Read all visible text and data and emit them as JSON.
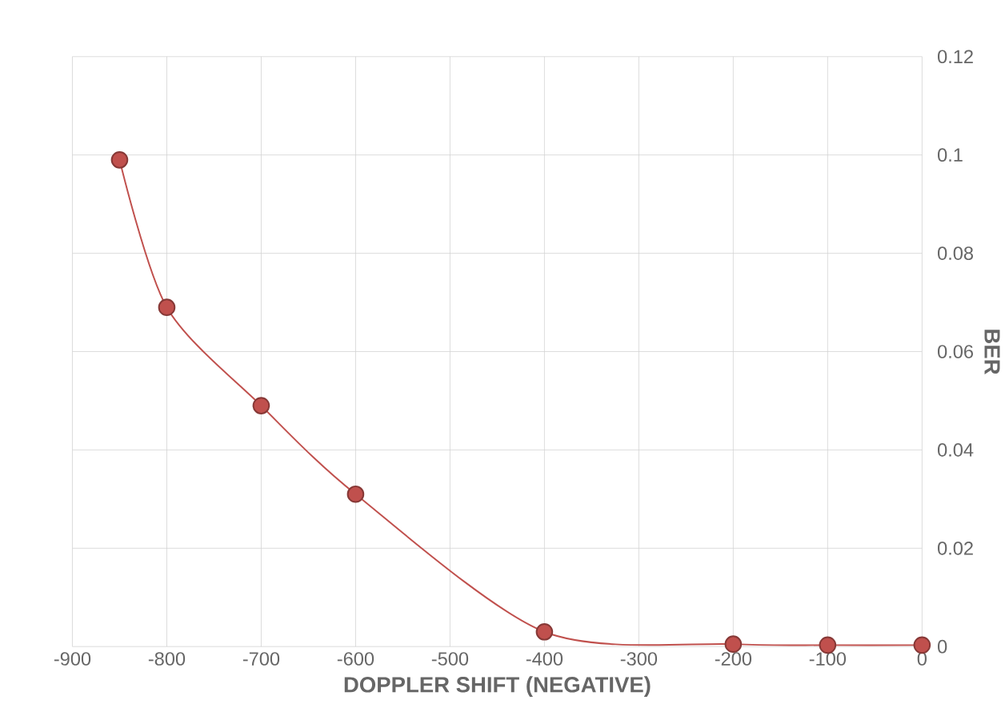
{
  "chart_data": {
    "type": "line",
    "xlabel": "DOPPLER SHIFT (NEGATIVE)",
    "ylabel": "BER",
    "x": [
      -850,
      -800,
      -700,
      -600,
      -400,
      -200,
      -100,
      0
    ],
    "series": [
      {
        "color": "#c0504d",
        "values": [
          0.099,
          0.069,
          0.049,
          0.031,
          0.003,
          0.0005,
          0.0003,
          0.0003
        ]
      }
    ],
    "xlim": [
      -900,
      0
    ],
    "xticks": [
      -900,
      -800,
      -700,
      -600,
      -500,
      -400,
      -300,
      -200,
      -100,
      0
    ],
    "ylim": [
      0,
      0.12
    ],
    "yticks": [
      0,
      0.02,
      0.04,
      0.06,
      0.08,
      0.1,
      0.12
    ],
    "grid": true,
    "marker": "circle",
    "line_style": "solid"
  }
}
